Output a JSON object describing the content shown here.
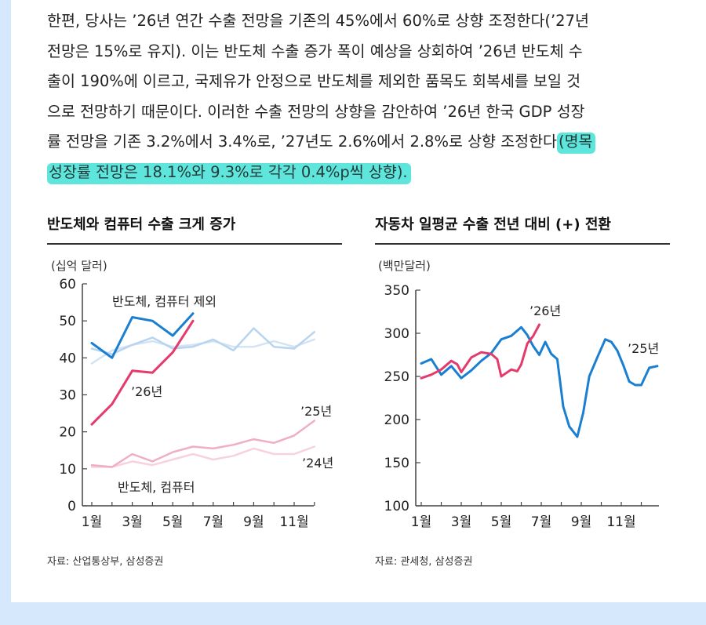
{
  "paragraph": {
    "line1": "한편, 당사는 ’26년 연간 수출 전망을 기존의 45%에서 60%로 상향 조정한다(’27년",
    "line2": "전망은 15%로 유지). 이는 반도체 수출 증가 폭이 예상을 상회하여 ’26년 반도체 수",
    "line3": "출이 190%에 이르고, 국제유가 안정으로 반도체를 제외한 품목도 회복세를 보일 것",
    "line4": "으로 전망하기 때문이다. 이러한 수출 전망의 상향을 감안하여 ’26년 한국 GDP 성장",
    "line5_plain": "률 전망을 기존 3.2%에서 3.4%로, ’27년도 2.6%에서 2.8%로 상향 조정한다",
    "line5_highlight": "(명목",
    "line6_highlight": "성장률 전망은 18.1%와 9.3%로 각각 0.4%p씩 상향)."
  },
  "colors": {
    "highlight": "#5fe6dc",
    "blue_dark": "#1a7fd0",
    "blue_light": "#b9d4ee",
    "red_dark": "#e43a6c",
    "red_mid": "#f0aec4",
    "red_light": "#f7d2de",
    "background_strip": "#d6e8fb"
  },
  "chart_data": [
    {
      "type": "line",
      "title": "반도체와 컴퓨터 수출 크게 증가",
      "unit": "(십억 달러)",
      "ylim": [
        0,
        60
      ],
      "yticks": [
        0,
        10,
        20,
        30,
        40,
        50,
        60
      ],
      "xticks": [
        "1월",
        "3월",
        "5월",
        "7월",
        "9월",
        "11월"
      ],
      "months": [
        1,
        2,
        3,
        4,
        5,
        6,
        7,
        8,
        9,
        10,
        11,
        12
      ],
      "grid": false,
      "series": [
        {
          "name": "반도체, 컴퓨터 제외",
          "group": "ex",
          "year": "’24",
          "color": "#d3e4f4",
          "width": 2.5,
          "values": [
            38.5,
            42,
            43.5,
            44.5,
            43,
            43.5,
            44.5,
            43,
            43,
            44.5,
            43,
            45
          ]
        },
        {
          "name": "반도체, 컴퓨터 제외",
          "group": "ex",
          "year": "’25",
          "color": "#b9d4ee",
          "width": 2.5,
          "values": [
            42.5,
            41,
            43.5,
            45.5,
            42.5,
            43,
            45,
            42,
            48,
            43,
            42.5,
            47
          ]
        },
        {
          "name": "반도체, 컴퓨터 제외",
          "group": "ex",
          "year": "’26",
          "color": "#1a7fd0",
          "width": 3,
          "values": [
            44,
            40,
            51,
            50,
            46,
            52
          ]
        },
        {
          "name": "반도체, 컴퓨터",
          "group": "semi",
          "year": "’24",
          "color": "#f7d2de",
          "width": 2.5,
          "values": [
            10.5,
            10.5,
            12,
            11,
            12.5,
            14,
            12.5,
            13.5,
            15.5,
            14,
            14,
            16
          ]
        },
        {
          "name": "반도체, 컴퓨터",
          "group": "semi",
          "year": "’25",
          "color": "#f0aec4",
          "width": 2.5,
          "values": [
            11,
            10.5,
            14,
            12,
            14.5,
            16,
            15.5,
            16.5,
            18,
            17,
            19,
            23
          ]
        },
        {
          "name": "반도체, 컴퓨터",
          "group": "semi",
          "year": "’26",
          "color": "#e43a6c",
          "width": 3,
          "values": [
            22,
            27.5,
            36.5,
            36,
            41.5,
            50
          ]
        }
      ],
      "annotations": {
        "ex_label": "반도체, 컴퓨터 제외",
        "semi_label": "반도체, 컴퓨터",
        "y26": "’26년",
        "y25": "’25년",
        "y24": "’24년"
      },
      "source": "자료: 산업통상부, 삼성증권"
    },
    {
      "type": "line",
      "title": "자동차 일평균 수출 전년 대비 (+) 전환",
      "unit": "(백만달러)",
      "ylim": [
        100,
        350
      ],
      "yticks": [
        100,
        150,
        200,
        250,
        300,
        350
      ],
      "xticks": [
        "1월",
        "3월",
        "5월",
        "7월",
        "9월",
        "11월"
      ],
      "grid": false,
      "series": [
        {
          "name": "’25년",
          "color": "#1a7fd0",
          "width": 3,
          "x": [
            1,
            1.5,
            2,
            2.5,
            3,
            3.5,
            4,
            4.5,
            5,
            5.5,
            6,
            6.3,
            6.6,
            6.9,
            7.2,
            7.5,
            7.8,
            8.1,
            8.4,
            8.8,
            9.1,
            9.4,
            9.8,
            10.2,
            10.5,
            10.8,
            11.1,
            11.4,
            11.7,
            12,
            12.4,
            12.8
          ],
          "values": [
            265,
            270,
            252,
            262,
            248,
            257,
            268,
            277,
            293,
            297,
            307,
            298,
            285,
            275,
            290,
            276,
            270,
            215,
            192,
            180,
            208,
            250,
            272,
            293,
            290,
            280,
            263,
            244,
            240,
            240,
            260,
            262
          ]
        },
        {
          "name": "’26년",
          "color": "#e43a6c",
          "width": 3,
          "x": [
            1,
            1.5,
            2,
            2.5,
            2.8,
            3,
            3.5,
            4,
            4.5,
            4.8,
            5,
            5.5,
            5.8,
            6,
            6.3,
            6.6,
            6.9
          ],
          "values": [
            248,
            252,
            258,
            268,
            264,
            255,
            272,
            278,
            276,
            270,
            250,
            258,
            256,
            264,
            288,
            297,
            310
          ]
        }
      ],
      "annotations": {
        "y26": "’26년",
        "y25": "’25년"
      },
      "source": "자료: 관세청, 삼성증권"
    }
  ]
}
